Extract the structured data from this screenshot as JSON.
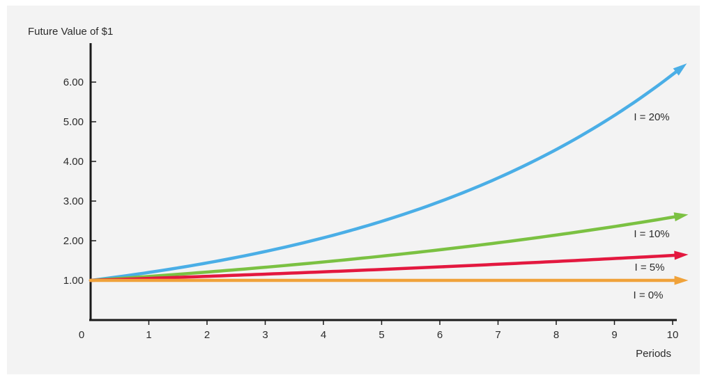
{
  "chart_data": {
    "type": "line",
    "title": "",
    "ylabel": "Future Value of $1",
    "xlabel": "Periods",
    "xlim": [
      0,
      10
    ],
    "ylim": [
      0,
      6.4
    ],
    "x_ticks": [
      "0",
      "1",
      "2",
      "3",
      "4",
      "5",
      "6",
      "7",
      "8",
      "9",
      "10"
    ],
    "y_ticks": [
      {
        "value": 1,
        "label": "1.00"
      },
      {
        "value": 2,
        "label": "2.00"
      },
      {
        "value": 3,
        "label": "3.00"
      },
      {
        "value": 4,
        "label": "4.00"
      },
      {
        "value": 5,
        "label": "5.00"
      },
      {
        "value": 6,
        "label": "6.00"
      }
    ],
    "grid": false,
    "x": [
      0,
      1,
      2,
      3,
      4,
      5,
      6,
      7,
      8,
      9,
      10
    ],
    "series": [
      {
        "name": "I = 20%",
        "rate": 0.2,
        "color": "#4aaee6",
        "values": [
          1.0,
          1.2,
          1.44,
          1.73,
          2.07,
          2.49,
          2.99,
          3.58,
          4.3,
          5.16,
          6.19
        ]
      },
      {
        "name": "I = 10%",
        "rate": 0.1,
        "color": "#7bc142",
        "values": [
          1.0,
          1.1,
          1.21,
          1.33,
          1.46,
          1.61,
          1.77,
          1.95,
          2.14,
          2.36,
          2.59
        ]
      },
      {
        "name": "I = 5%",
        "rate": 0.05,
        "color": "#e3183f",
        "values": [
          1.0,
          1.05,
          1.1,
          1.16,
          1.22,
          1.28,
          1.34,
          1.41,
          1.48,
          1.55,
          1.63
        ]
      },
      {
        "name": "I = 0%",
        "rate": 0.0,
        "color": "#f0a23a",
        "values": [
          1.0,
          1.0,
          1.0,
          1.0,
          1.0,
          1.0,
          1.0,
          1.0,
          1.0,
          1.0,
          1.0
        ]
      }
    ]
  }
}
